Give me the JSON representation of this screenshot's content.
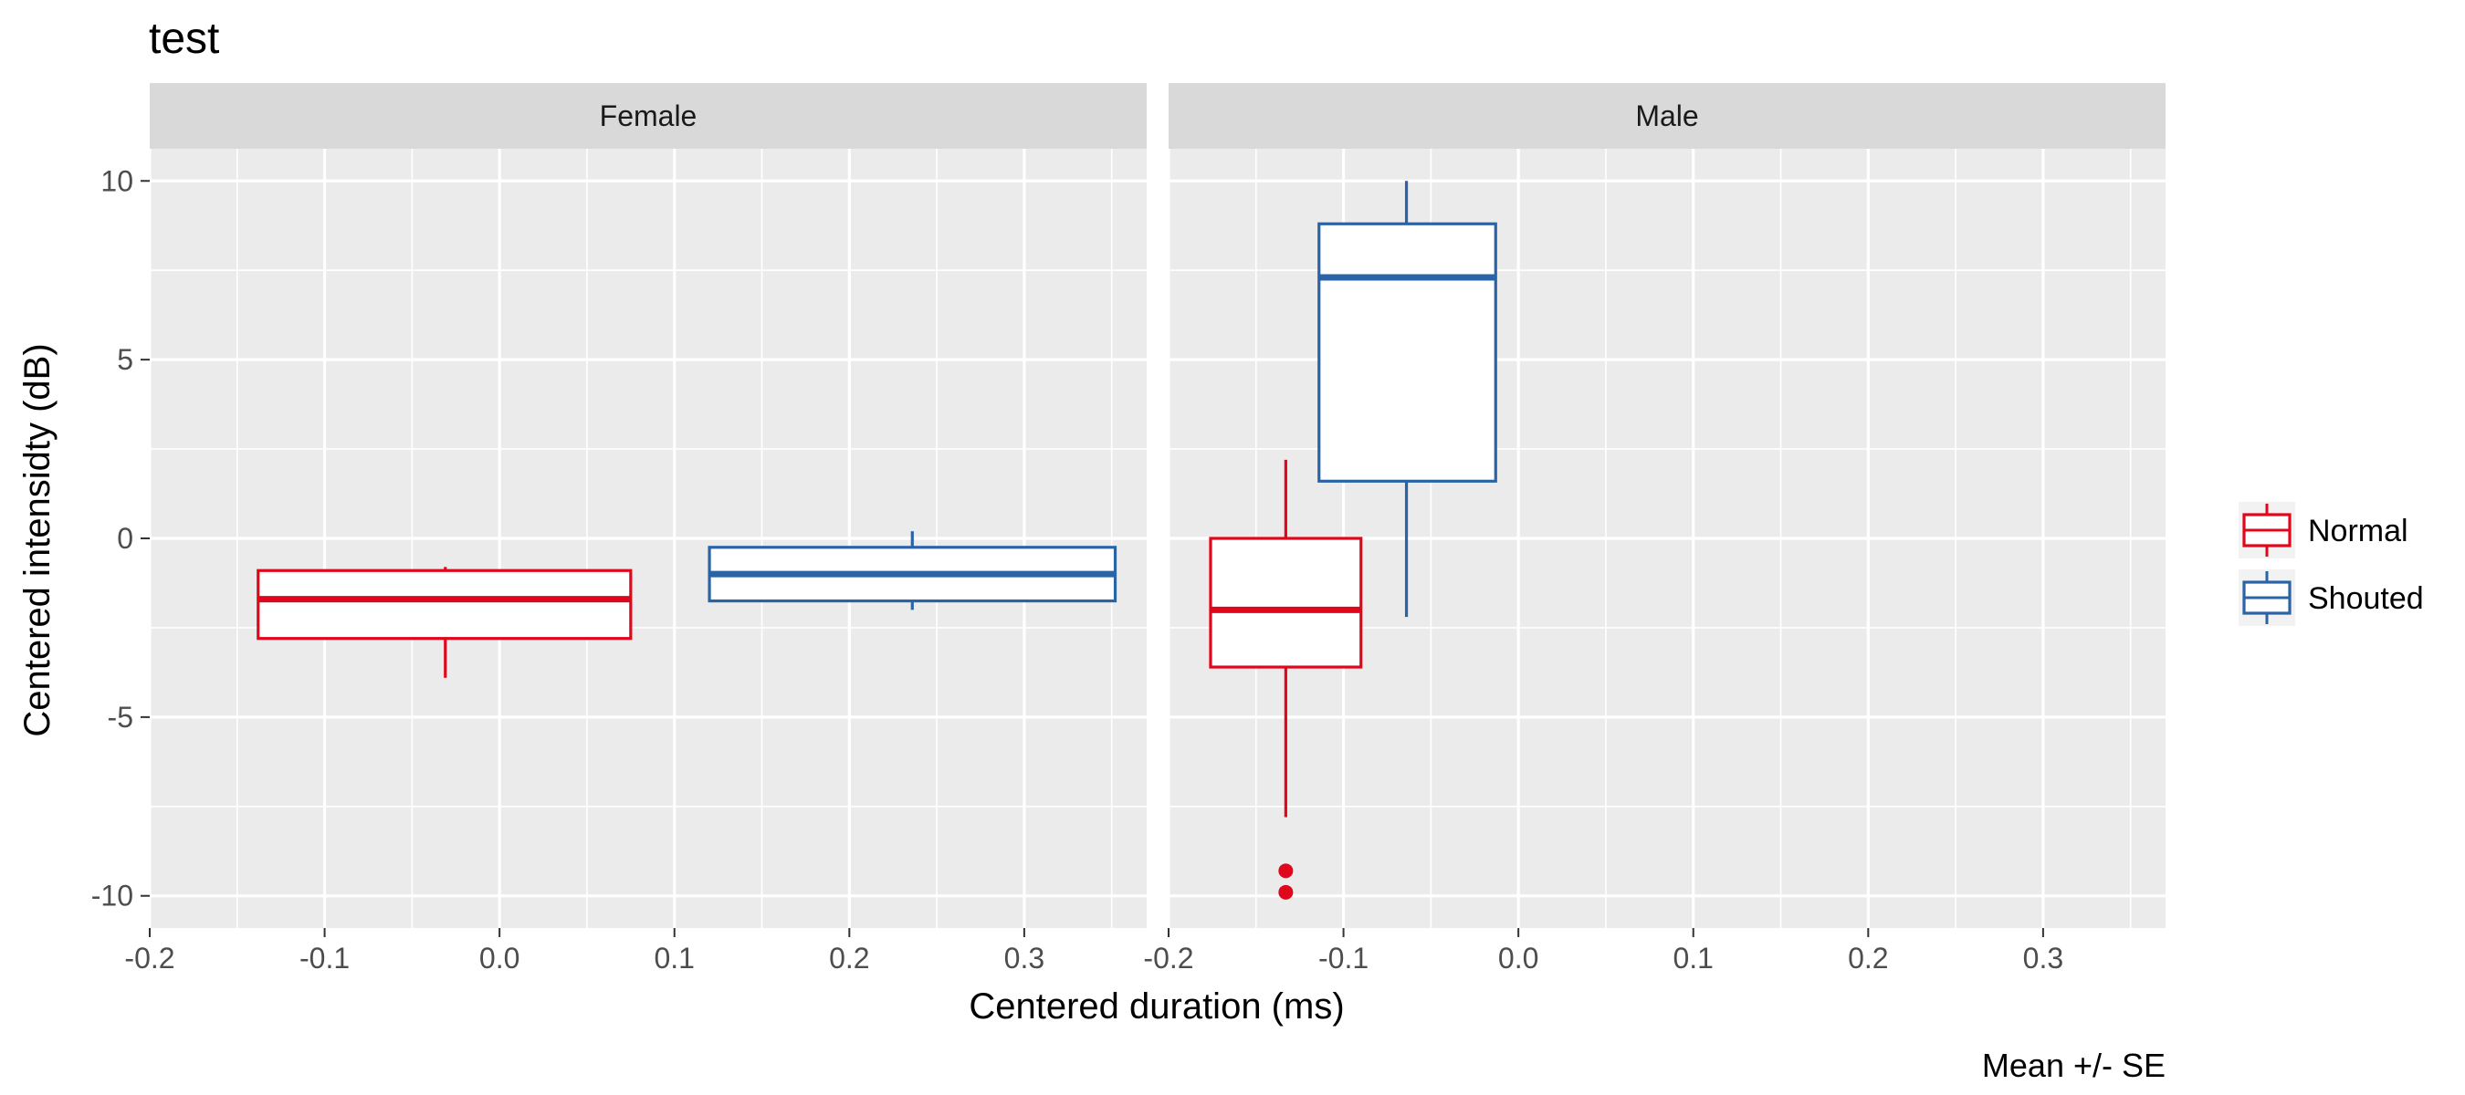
{
  "chart_data": {
    "type": "boxplot",
    "title": "test",
    "caption": "Mean +/- SE",
    "xlabel": "Centered duration (ms)",
    "ylabel": "Centered intensidty (dB)",
    "xlim": [
      -0.2,
      0.37
    ],
    "ylim": [
      -10.9,
      10.9
    ],
    "x_ticks": [
      -0.2,
      -0.1,
      0.0,
      0.1,
      0.2,
      0.3
    ],
    "x_tick_labels": [
      "-0.2",
      "-0.1",
      "0.0",
      "0.1",
      "0.2",
      "0.3"
    ],
    "y_ticks": [
      -10,
      -5,
      0,
      5,
      10
    ],
    "y_tick_labels": [
      "-10",
      "-5",
      "0",
      "5",
      "10"
    ],
    "grid": true,
    "legend_position": "right",
    "legend": [
      {
        "name": "Normal",
        "color": "#e0061c"
      },
      {
        "name": "Shouted",
        "color": "#2b64a6"
      }
    ],
    "panels": [
      {
        "label": "Female",
        "boxes": [
          {
            "series": "Normal",
            "xmin": -0.138,
            "xmax": 0.075,
            "x_center": -0.031,
            "whisker_low": -3.9,
            "q1": -2.8,
            "median": -1.7,
            "q3": -0.9,
            "whisker_high": -0.8,
            "outliers": []
          },
          {
            "series": "Shouted",
            "xmin": 0.12,
            "xmax": 0.352,
            "x_center": 0.236,
            "whisker_low": -2.0,
            "q1": -1.75,
            "median": -1.0,
            "q3": -0.25,
            "whisker_high": 0.2,
            "outliers": []
          }
        ]
      },
      {
        "label": "Male",
        "boxes": [
          {
            "series": "Normal",
            "xmin": -0.176,
            "xmax": -0.09,
            "x_center": -0.133,
            "whisker_low": -7.8,
            "q1": -3.6,
            "median": -2.0,
            "q3": 0.0,
            "whisker_high": 2.2,
            "outliers": [
              -9.3,
              -9.9
            ]
          },
          {
            "series": "Shouted",
            "xmin": -0.114,
            "xmax": -0.013,
            "x_center": -0.064,
            "whisker_low": -2.2,
            "q1": 1.6,
            "median": 7.3,
            "q3": 8.8,
            "whisker_high": 10.0,
            "outliers": []
          }
        ]
      }
    ]
  }
}
